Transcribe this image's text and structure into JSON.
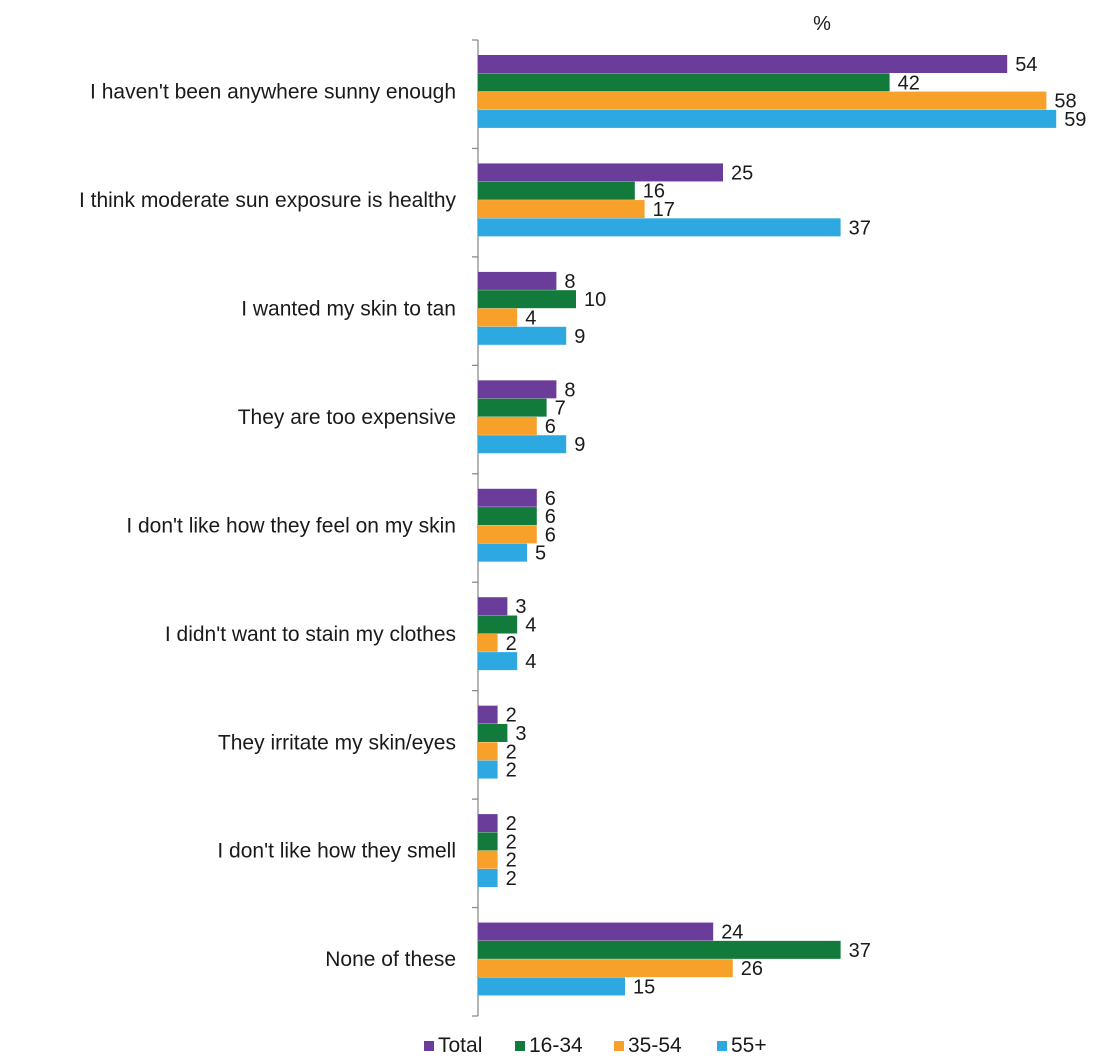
{
  "chart_data": {
    "type": "bar",
    "orientation": "horizontal",
    "unit_label": "%",
    "categories": [
      "I haven't been anywhere sunny enough",
      "I think moderate sun exposure is healthy",
      "I wanted my skin to tan",
      "They are too expensive",
      "I don't like how they feel on my skin",
      "I didn't want to stain my clothes",
      "They irritate my skin/eyes",
      "I don't like how they smell",
      "None of these"
    ],
    "series": [
      {
        "name": "Total",
        "color": "#6a3d9a",
        "values": [
          54,
          25,
          8,
          8,
          6,
          3,
          2,
          2,
          24
        ]
      },
      {
        "name": "16-34",
        "color": "#127a3a",
        "values": [
          42,
          16,
          10,
          7,
          6,
          4,
          3,
          2,
          37
        ]
      },
      {
        "name": "35-54",
        "color": "#f7a12b",
        "values": [
          58,
          17,
          4,
          6,
          6,
          2,
          2,
          2,
          26
        ]
      },
      {
        "name": "55+",
        "color": "#2ea8e0",
        "values": [
          59,
          37,
          9,
          9,
          5,
          4,
          2,
          2,
          15
        ]
      }
    ],
    "xlim": [
      0,
      60
    ],
    "grid": false,
    "legend_position": "bottom"
  }
}
